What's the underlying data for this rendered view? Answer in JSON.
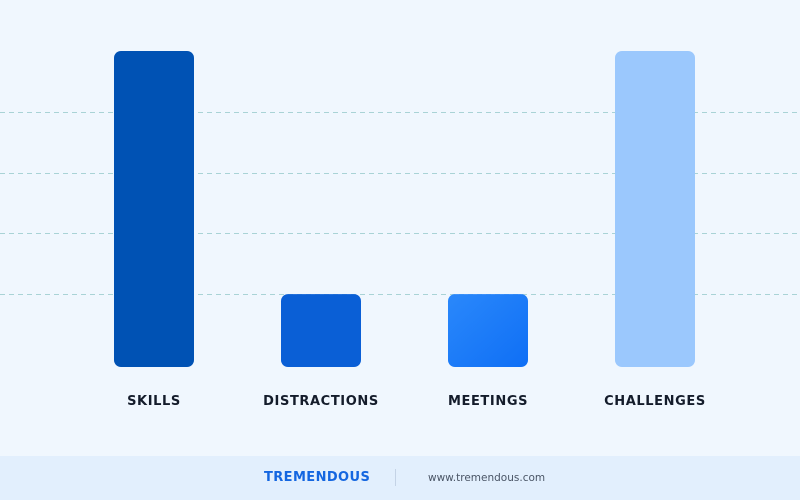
{
  "chart_data": {
    "type": "bar",
    "categories": [
      "SKILLS",
      "DISTRACTIONS",
      "MEETINGS",
      "CHALLENGES"
    ],
    "values": [
      5.2,
      1.2,
      1.2,
      5.2
    ],
    "ylim": [
      0,
      5.2
    ],
    "grid": true,
    "gridlines": [
      1.2,
      2.2,
      3.2,
      4.2
    ],
    "colors": [
      "#0052b4",
      "#0a5fd6",
      "#2180f8",
      "#9bc8fd"
    ]
  },
  "footer": {
    "brand": "TREMENDOUS",
    "url": "www.tremendous.com"
  }
}
